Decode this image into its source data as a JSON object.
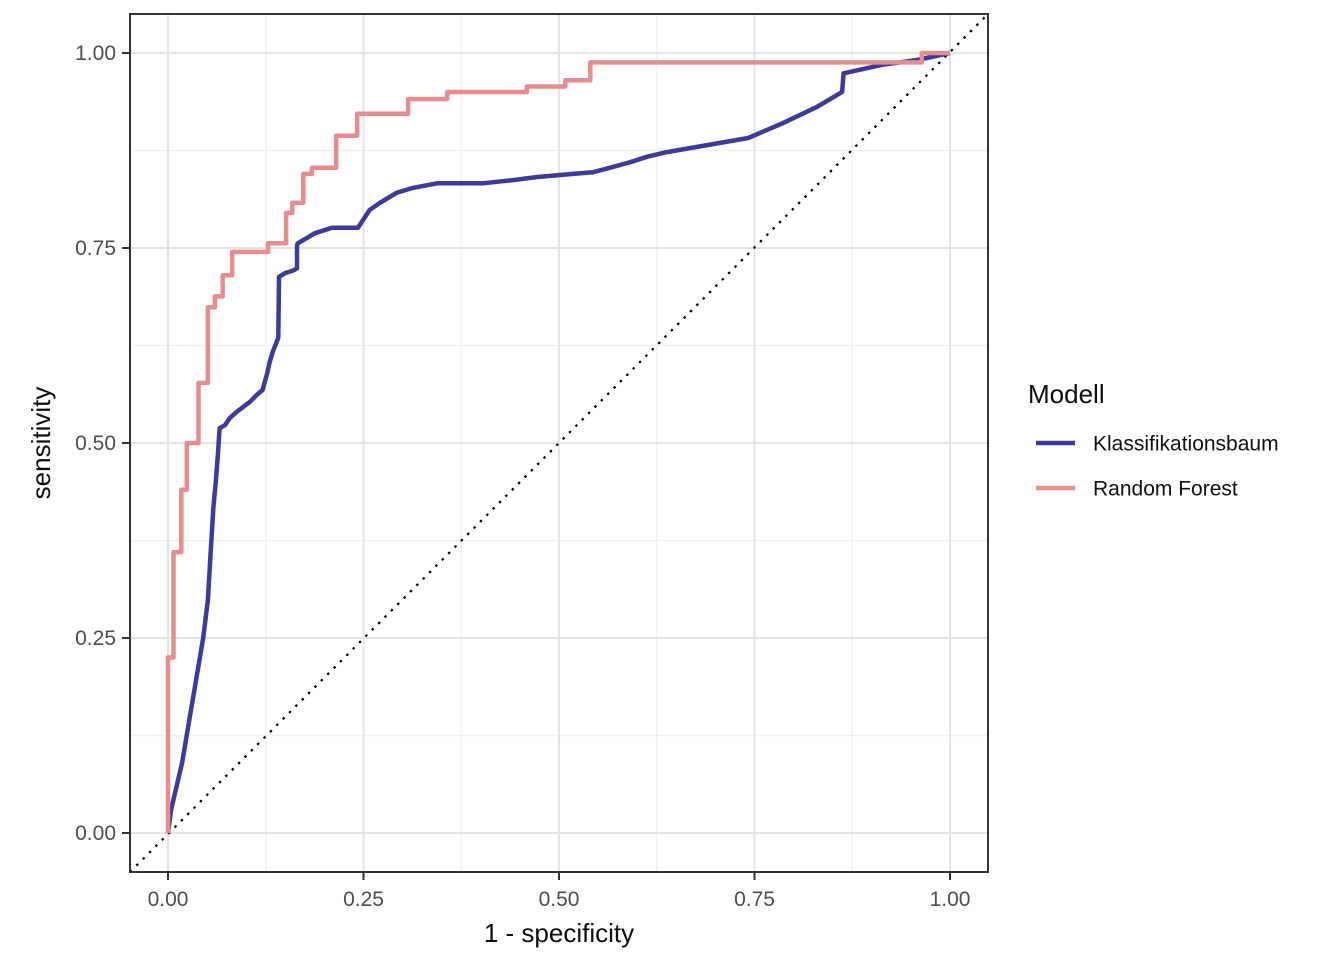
{
  "chart_data": {
    "type": "line",
    "subtype": "roc-step-curves",
    "title": "",
    "xlabel": "1 - specificity",
    "ylabel": "sensitivity",
    "xlim": [
      0,
      1
    ],
    "ylim": [
      0,
      1
    ],
    "grid": "on",
    "x_ticks": [
      "0.00",
      "0.25",
      "0.50",
      "0.75",
      "1.00"
    ],
    "x_tick_values": [
      0,
      0.25,
      0.5,
      0.75,
      1
    ],
    "y_ticks": [
      "0.00",
      "0.25",
      "0.50",
      "0.75",
      "1.00"
    ],
    "y_tick_values": [
      0,
      0.25,
      0.5,
      0.75,
      1
    ],
    "minor_tick_values": [
      0.125,
      0.375,
      0.625,
      0.875
    ],
    "reference_line": {
      "type": "diagonal",
      "from": [
        0,
        0
      ],
      "to": [
        1,
        1
      ],
      "style": "dotted",
      "color": "#000000"
    },
    "legend": {
      "title": "Modell",
      "position": "right"
    },
    "colors": {
      "grid_major": "#e4e4e4",
      "grid_minor": "#f0f0f0",
      "panel_border": "#333333",
      "tick_mark": "#333333",
      "tick_text": "#4d4d4d",
      "title_text": "#0d0d0d"
    },
    "series": [
      {
        "name": "Klassifikationsbaum",
        "color": "#3b3b9b",
        "points": [
          [
            0.0,
            0.0
          ],
          [
            0.004,
            0.03
          ],
          [
            0.018,
            0.09
          ],
          [
            0.032,
            0.173
          ],
          [
            0.045,
            0.25
          ],
          [
            0.051,
            0.299
          ],
          [
            0.054,
            0.35
          ],
          [
            0.058,
            0.418
          ],
          [
            0.061,
            0.449
          ],
          [
            0.064,
            0.487
          ],
          [
            0.066,
            0.519
          ],
          [
            0.073,
            0.523
          ],
          [
            0.079,
            0.532
          ],
          [
            0.088,
            0.54
          ],
          [
            0.096,
            0.546
          ],
          [
            0.105,
            0.553
          ],
          [
            0.114,
            0.562
          ],
          [
            0.121,
            0.568
          ],
          [
            0.127,
            0.59
          ],
          [
            0.13,
            0.604
          ],
          [
            0.134,
            0.617
          ],
          [
            0.141,
            0.635
          ],
          [
            0.142,
            0.713
          ],
          [
            0.15,
            0.718
          ],
          [
            0.16,
            0.721
          ],
          [
            0.165,
            0.724
          ],
          [
            0.165,
            0.754
          ],
          [
            0.166,
            0.756
          ],
          [
            0.188,
            0.769
          ],
          [
            0.21,
            0.776
          ],
          [
            0.243,
            0.776
          ],
          [
            0.258,
            0.799
          ],
          [
            0.271,
            0.808
          ],
          [
            0.293,
            0.821
          ],
          [
            0.313,
            0.827
          ],
          [
            0.344,
            0.833
          ],
          [
            0.403,
            0.833
          ],
          [
            0.441,
            0.837
          ],
          [
            0.472,
            0.841
          ],
          [
            0.518,
            0.845
          ],
          [
            0.543,
            0.847
          ],
          [
            0.569,
            0.854
          ],
          [
            0.591,
            0.86
          ],
          [
            0.613,
            0.867
          ],
          [
            0.638,
            0.873
          ],
          [
            0.742,
            0.891
          ],
          [
            0.786,
            0.91
          ],
          [
            0.83,
            0.931
          ],
          [
            0.862,
            0.95
          ],
          [
            0.864,
            0.974
          ],
          [
            0.914,
            0.985
          ],
          [
            0.958,
            0.991
          ],
          [
            1.0,
            1.0
          ]
        ]
      },
      {
        "name": "Random Forest",
        "color": "#e88d8d",
        "points": [
          [
            0.0,
            0.0
          ],
          [
            0.0,
            0.225
          ],
          [
            0.007,
            0.225
          ],
          [
            0.007,
            0.36
          ],
          [
            0.017,
            0.36
          ],
          [
            0.017,
            0.44
          ],
          [
            0.024,
            0.44
          ],
          [
            0.024,
            0.5
          ],
          [
            0.039,
            0.5
          ],
          [
            0.039,
            0.577
          ],
          [
            0.051,
            0.577
          ],
          [
            0.051,
            0.674
          ],
          [
            0.06,
            0.674
          ],
          [
            0.06,
            0.688
          ],
          [
            0.07,
            0.688
          ],
          [
            0.07,
            0.715
          ],
          [
            0.082,
            0.715
          ],
          [
            0.082,
            0.745
          ],
          [
            0.128,
            0.745
          ],
          [
            0.128,
            0.756
          ],
          [
            0.151,
            0.756
          ],
          [
            0.151,
            0.795
          ],
          [
            0.159,
            0.795
          ],
          [
            0.159,
            0.808
          ],
          [
            0.173,
            0.808
          ],
          [
            0.173,
            0.845
          ],
          [
            0.184,
            0.845
          ],
          [
            0.184,
            0.853
          ],
          [
            0.215,
            0.853
          ],
          [
            0.215,
            0.894
          ],
          [
            0.242,
            0.894
          ],
          [
            0.242,
            0.922
          ],
          [
            0.307,
            0.922
          ],
          [
            0.307,
            0.941
          ],
          [
            0.357,
            0.941
          ],
          [
            0.357,
            0.95
          ],
          [
            0.459,
            0.95
          ],
          [
            0.459,
            0.957
          ],
          [
            0.508,
            0.957
          ],
          [
            0.508,
            0.965
          ],
          [
            0.54,
            0.965
          ],
          [
            0.54,
            0.988
          ],
          [
            0.964,
            0.988
          ],
          [
            0.964,
            1.0
          ],
          [
            1.0,
            1.0
          ]
        ]
      }
    ]
  }
}
